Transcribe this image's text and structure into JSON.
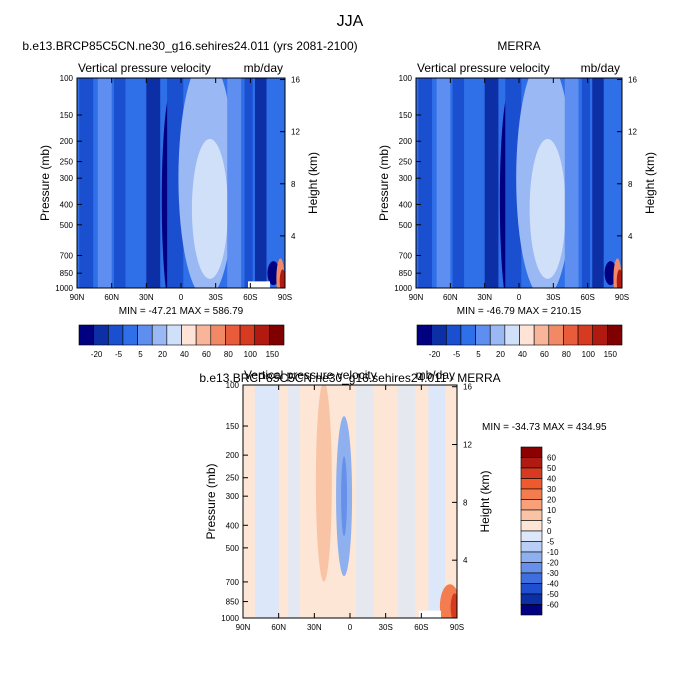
{
  "page": {
    "title": "JJA"
  },
  "shared": {
    "field_label": "Vertical pressure velocity",
    "units": "mb/day",
    "ylabel_left": "Pressure (mb)",
    "ylabel_right": "Height (km)"
  },
  "chart_data": [
    {
      "type": "heatmap",
      "title": "b.e13.BRCP85C5CN.ne30_g16.sehires24.011 (yrs 2081-2100)",
      "xlabel": "",
      "x_ticks": [
        "90N",
        "60N",
        "30N",
        "0",
        "30S",
        "60S",
        "90S"
      ],
      "xlim": [
        90,
        -90
      ],
      "y_ticks": [
        100,
        150,
        200,
        250,
        300,
        400,
        500,
        700,
        850,
        1000
      ],
      "ylim": [
        1000,
        100
      ],
      "y_scale": "log",
      "right_ticks": [
        4,
        8,
        12,
        16
      ],
      "stats": "MIN = -47.21  MAX = 586.79",
      "min": -47.21,
      "max": 586.79,
      "levels": [
        -20,
        -5,
        5,
        20,
        40,
        60,
        80,
        100,
        150
      ],
      "colorbar_labels": [
        "-20",
        "-5",
        "5",
        "20",
        "40",
        "60",
        "80",
        "100",
        "150"
      ],
      "colors": [
        "#000080",
        "#0d2fa5",
        "#1a4fd0",
        "#2f6fe8",
        "#5d8ef0",
        "#9ab8f4",
        "#cfe0f8",
        "#ffe3d6",
        "#f8b59a",
        "#f28966",
        "#e85c3c",
        "#d63a20",
        "#b01a10",
        "#800000"
      ]
    },
    {
      "type": "heatmap",
      "title": "MERRA",
      "xlabel": "",
      "x_ticks": [
        "90N",
        "60N",
        "30N",
        "0",
        "30S",
        "60S",
        "90S"
      ],
      "xlim": [
        90,
        -90
      ],
      "y_ticks": [
        100,
        150,
        200,
        250,
        300,
        400,
        500,
        700,
        850,
        1000
      ],
      "ylim": [
        1000,
        100
      ],
      "y_scale": "log",
      "right_ticks": [
        4,
        8,
        12,
        16
      ],
      "stats": "MIN = -46.79  MAX = 210.15",
      "min": -46.79,
      "max": 210.15,
      "levels": [
        -20,
        -5,
        5,
        20,
        40,
        60,
        80,
        100,
        150
      ],
      "colorbar_labels": [
        "-20",
        "-5",
        "5",
        "20",
        "40",
        "60",
        "80",
        "100",
        "150"
      ],
      "colors": [
        "#000080",
        "#0d2fa5",
        "#1a4fd0",
        "#2f6fe8",
        "#5d8ef0",
        "#9ab8f4",
        "#cfe0f8",
        "#ffe3d6",
        "#f8b59a",
        "#f28966",
        "#e85c3c",
        "#d63a20",
        "#b01a10",
        "#800000"
      ]
    },
    {
      "type": "heatmap",
      "title": "b.e13.BRCP85C5CN.ne30_g16.sehires24.011 - MERRA",
      "xlabel": "",
      "x_ticks": [
        "90N",
        "60N",
        "30N",
        "0",
        "30S",
        "60S",
        "90S"
      ],
      "xlim": [
        90,
        -90
      ],
      "y_ticks": [
        100,
        150,
        200,
        250,
        300,
        400,
        500,
        700,
        850,
        1000
      ],
      "ylim": [
        1000,
        100
      ],
      "y_scale": "log",
      "right_ticks": [
        4,
        8,
        12,
        16
      ],
      "stats": "MIN = -34.73  MAX = 434.95",
      "min": -34.73,
      "max": 434.95,
      "levels": [
        60,
        50,
        40,
        30,
        20,
        10,
        5,
        0,
        -5,
        -10,
        -20,
        -30,
        -40,
        -50,
        -60
      ],
      "colorbar_labels": [
        "60",
        "50",
        "40",
        "30",
        "20",
        "10",
        "5",
        "0",
        "-5",
        "-10",
        "-20",
        "-30",
        "-40",
        "-50",
        "-60"
      ],
      "colors": [
        "#8b0000",
        "#b01a10",
        "#d63a20",
        "#ee5a2c",
        "#f47d50",
        "#f7a07a",
        "#f9c4a6",
        "#fde6d6",
        "#dce8fa",
        "#b8cef6",
        "#8fb0ef",
        "#6790ea",
        "#3e6ee0",
        "#1f4fcf",
        "#0d2fa5",
        "#000080"
      ]
    }
  ]
}
